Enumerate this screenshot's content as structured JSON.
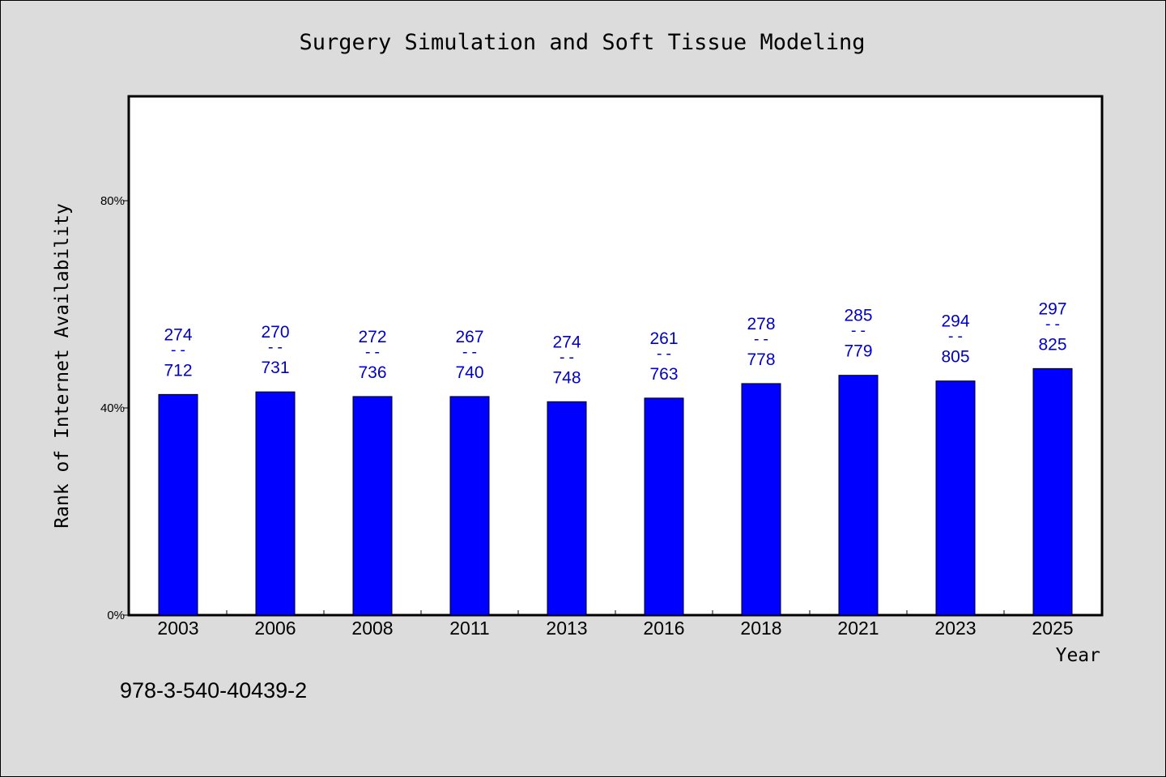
{
  "chart_data": {
    "type": "bar",
    "title": "Surgery Simulation and Soft Tissue Modeling",
    "xlabel": "Year",
    "ylabel": "Rank of Internet Availability",
    "footer": "978-3-540-40439-2",
    "categories": [
      "2003",
      "2006",
      "2008",
      "2011",
      "2013",
      "2016",
      "2018",
      "2021",
      "2023",
      "2025"
    ],
    "values": [
      42.6,
      43.1,
      42.2,
      42.2,
      41.2,
      41.9,
      44.7,
      46.3,
      45.2,
      47.6
    ],
    "labels_top": [
      "274",
      "270",
      "272",
      "267",
      "274",
      "261",
      "278",
      "285",
      "294",
      "297"
    ],
    "labels_mid": [
      "--",
      "--",
      "--",
      "--",
      "--",
      "--",
      "--",
      "--",
      "--",
      "--"
    ],
    "labels_bottom": [
      "712",
      "731",
      "736",
      "740",
      "748",
      "763",
      "778",
      "779",
      "805",
      "825"
    ],
    "yticks": [
      0,
      40,
      80
    ],
    "ytick_labels": [
      "0%",
      "40%",
      "80%"
    ],
    "ylim": [
      0,
      100
    ],
    "grid": false,
    "colors": {
      "bar": "#0000ff",
      "label": "#0000cc",
      "background": "#dcdcdc",
      "plot": "#ffffff"
    }
  }
}
